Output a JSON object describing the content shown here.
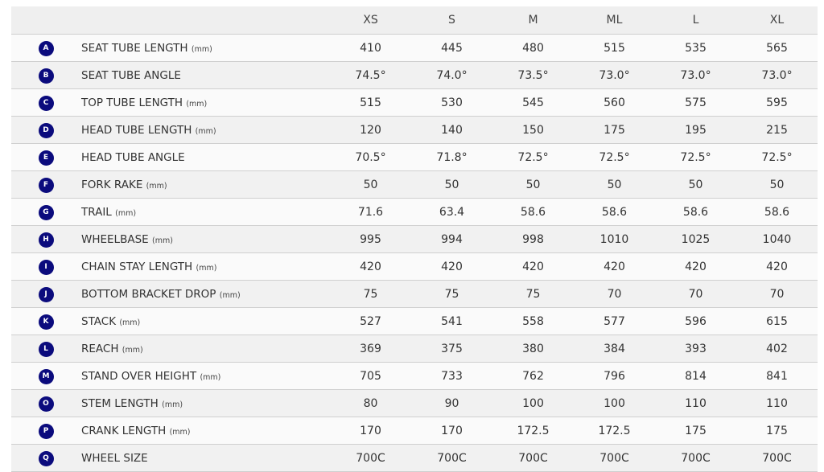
{
  "columns": [
    "XS",
    "S",
    "M",
    "ML",
    "L",
    "XL"
  ],
  "accent_color": "#0b0b7d",
  "rows": [
    {
      "key": "A",
      "label": "SEAT TUBE LENGTH",
      "unit": "(mm)",
      "values": [
        "410",
        "445",
        "480",
        "515",
        "535",
        "565"
      ]
    },
    {
      "key": "B",
      "label": "SEAT TUBE ANGLE",
      "unit": "",
      "values": [
        "74.5°",
        "74.0°",
        "73.5°",
        "73.0°",
        "73.0°",
        "73.0°"
      ]
    },
    {
      "key": "C",
      "label": "TOP TUBE LENGTH",
      "unit": "(mm)",
      "values": [
        "515",
        "530",
        "545",
        "560",
        "575",
        "595"
      ]
    },
    {
      "key": "D",
      "label": "HEAD TUBE LENGTH",
      "unit": "(mm)",
      "values": [
        "120",
        "140",
        "150",
        "175",
        "195",
        "215"
      ]
    },
    {
      "key": "E",
      "label": "HEAD TUBE ANGLE",
      "unit": "",
      "values": [
        "70.5°",
        "71.8°",
        "72.5°",
        "72.5°",
        "72.5°",
        "72.5°"
      ]
    },
    {
      "key": "F",
      "label": "FORK RAKE",
      "unit": "(mm)",
      "values": [
        "50",
        "50",
        "50",
        "50",
        "50",
        "50"
      ]
    },
    {
      "key": "G",
      "label": "TRAIL",
      "unit": "(mm)",
      "values": [
        "71.6",
        "63.4",
        "58.6",
        "58.6",
        "58.6",
        "58.6"
      ]
    },
    {
      "key": "H",
      "label": "WHEELBASE",
      "unit": "(mm)",
      "values": [
        "995",
        "994",
        "998",
        "1010",
        "1025",
        "1040"
      ]
    },
    {
      "key": "I",
      "label": "CHAIN STAY LENGTH",
      "unit": "(mm)",
      "values": [
        "420",
        "420",
        "420",
        "420",
        "420",
        "420"
      ]
    },
    {
      "key": "J",
      "label": "BOTTOM BRACKET DROP",
      "unit": "(mm)",
      "values": [
        "75",
        "75",
        "75",
        "70",
        "70",
        "70"
      ]
    },
    {
      "key": "K",
      "label": "STACK",
      "unit": "(mm)",
      "values": [
        "527",
        "541",
        "558",
        "577",
        "596",
        "615"
      ]
    },
    {
      "key": "L",
      "label": "REACH",
      "unit": "(mm)",
      "values": [
        "369",
        "375",
        "380",
        "384",
        "393",
        "402"
      ]
    },
    {
      "key": "M",
      "label": "STAND OVER HEIGHT",
      "unit": "(mm)",
      "values": [
        "705",
        "733",
        "762",
        "796",
        "814",
        "841"
      ]
    },
    {
      "key": "O",
      "label": "STEM LENGTH",
      "unit": "(mm)",
      "values": [
        "80",
        "90",
        "100",
        "100",
        "110",
        "110"
      ]
    },
    {
      "key": "P",
      "label": "CRANK LENGTH",
      "unit": "(mm)",
      "values": [
        "170",
        "170",
        "172.5",
        "172.5",
        "175",
        "175"
      ]
    },
    {
      "key": "Q",
      "label": "WHEEL SIZE",
      "unit": "",
      "values": [
        "700C",
        "700C",
        "700C",
        "700C",
        "700C",
        "700C"
      ]
    }
  ]
}
